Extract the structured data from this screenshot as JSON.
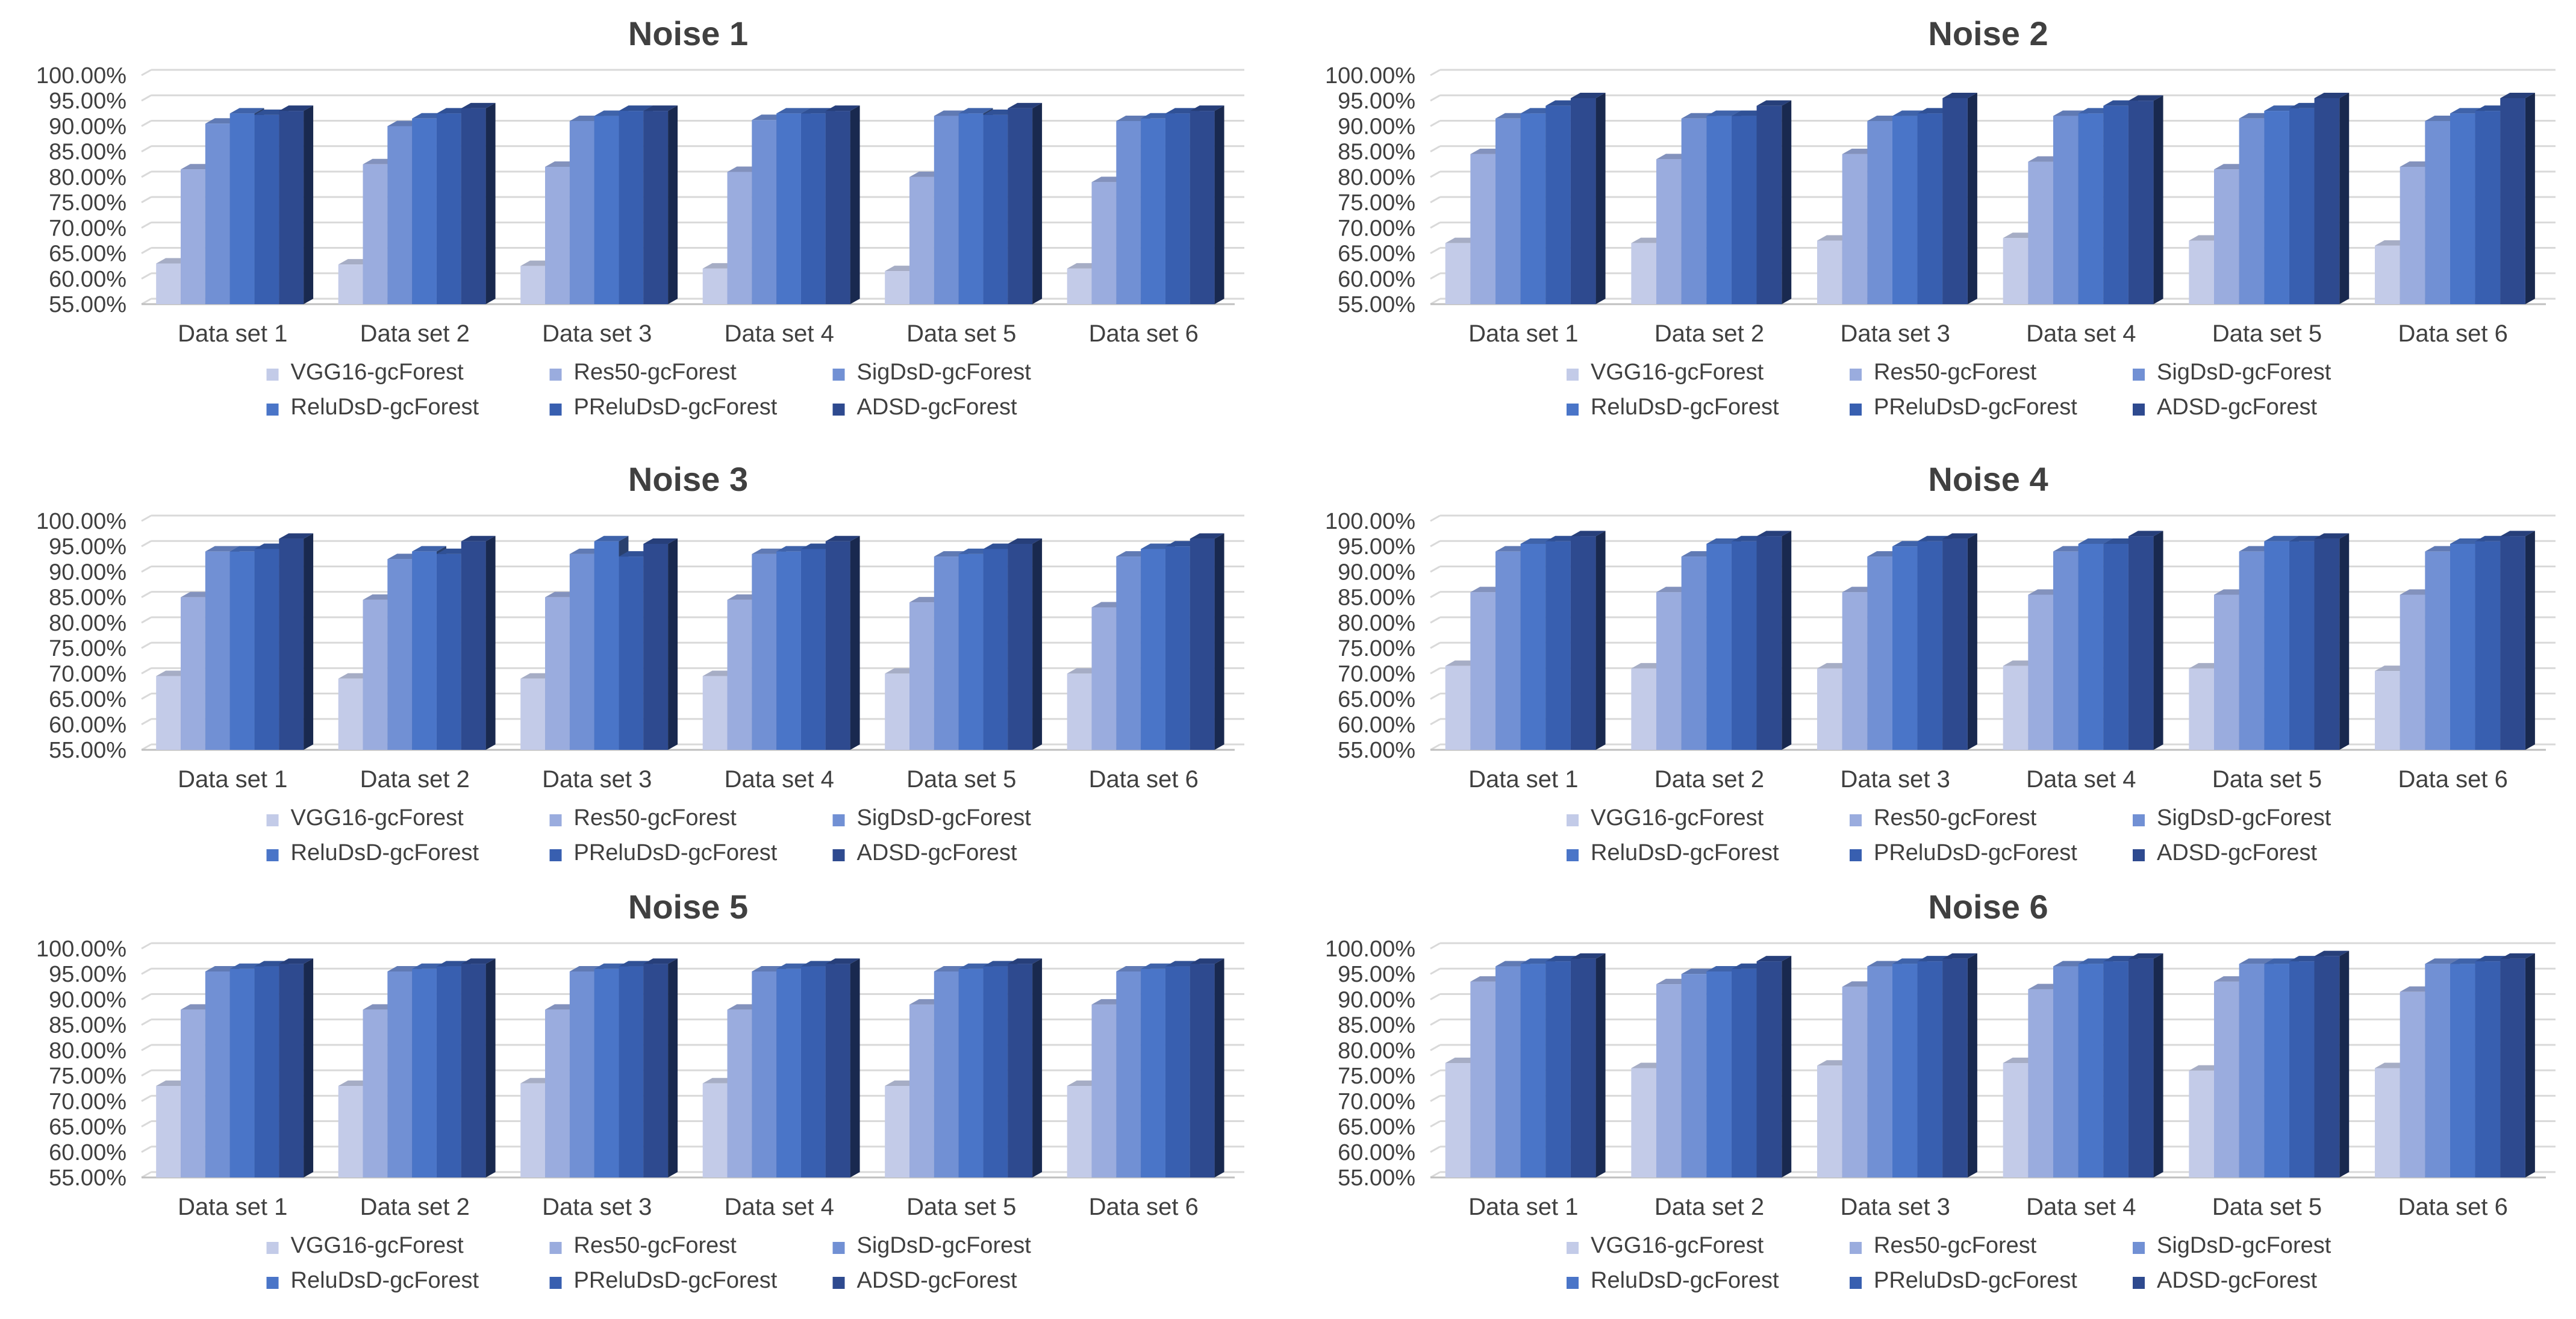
{
  "colors": {
    "VGG16-gcForest": "#c3cbe8",
    "Res50-gcForest": "#9aacde",
    "SigDsD-gcForest": "#7190d4",
    "ReluDsD-gcForest": "#4a75c8",
    "PReluDsD-gcForest": "#385fb0",
    "ADSD-gcForest": "#2e4a8f"
  },
  "chart_data": [
    {
      "type": "bar",
      "title": "Noise 1",
      "categories": [
        "Data set 1",
        "Data set 2",
        "Data set 3",
        "Data set 4",
        "Data set 5",
        "Data set 6"
      ],
      "y_tick_labels": [
        "55.00%",
        "60.00%",
        "65.00%",
        "70.00%",
        "75.00%",
        "80.00%",
        "85.00%",
        "90.00%",
        "95.00%",
        "100.00%"
      ],
      "ylim": [
        55,
        100
      ],
      "series": [
        {
          "name": "VGG16-gcForest",
          "values": [
            63.0,
            62.8,
            62.5,
            62.0,
            61.5,
            62.0
          ]
        },
        {
          "name": "Res50-gcForest",
          "values": [
            81.5,
            82.5,
            82.0,
            81.0,
            80.0,
            79.0
          ]
        },
        {
          "name": "SigDsD-gcForest",
          "values": [
            90.5,
            90.0,
            91.0,
            91.2,
            92.0,
            91.0
          ]
        },
        {
          "name": "ReluDsD-gcForest",
          "values": [
            92.5,
            91.5,
            92.0,
            92.5,
            92.5,
            91.5
          ]
        },
        {
          "name": "PReluDsD-gcForest",
          "values": [
            92.2,
            92.5,
            93.0,
            92.5,
            92.2,
            92.5
          ]
        },
        {
          "name": "ADSD-gcForest",
          "values": [
            93.0,
            93.5,
            93.0,
            93.0,
            93.5,
            93.0
          ]
        }
      ]
    },
    {
      "type": "bar",
      "title": "Noise 2",
      "categories": [
        "Data set 1",
        "Data set 2",
        "Data set 3",
        "Data set 4",
        "Data set 5",
        "Data set 6"
      ],
      "y_tick_labels": [
        "55.00%",
        "60.00%",
        "65.00%",
        "70.00%",
        "75.00%",
        "80.00%",
        "85.00%",
        "90.00%",
        "95.00%",
        "100.00%"
      ],
      "ylim": [
        55,
        100
      ],
      "series": [
        {
          "name": "VGG16-gcForest",
          "values": [
            67.0,
            67.0,
            67.5,
            68.0,
            67.5,
            66.5
          ]
        },
        {
          "name": "Res50-gcForest",
          "values": [
            84.5,
            83.5,
            84.5,
            83.0,
            81.5,
            82.0
          ]
        },
        {
          "name": "SigDsD-gcForest",
          "values": [
            91.5,
            91.5,
            91.0,
            92.0,
            91.5,
            91.0
          ]
        },
        {
          "name": "ReluDsD-gcForest",
          "values": [
            92.5,
            92.0,
            92.0,
            92.5,
            93.0,
            92.5
          ]
        },
        {
          "name": "PReluDsD-gcForest",
          "values": [
            94.0,
            92.0,
            92.5,
            94.0,
            93.5,
            93.0
          ]
        },
        {
          "name": "ADSD-gcForest",
          "values": [
            95.5,
            94.0,
            95.5,
            95.0,
            95.5,
            95.5
          ]
        }
      ]
    },
    {
      "type": "bar",
      "title": "Noise 3",
      "categories": [
        "Data set 1",
        "Data set 2",
        "Data set 3",
        "Data set 4",
        "Data set 5",
        "Data set 6"
      ],
      "y_tick_labels": [
        "55.00%",
        "60.00%",
        "65.00%",
        "70.00%",
        "75.00%",
        "80.00%",
        "85.00%",
        "90.00%",
        "95.00%",
        "100.00%"
      ],
      "ylim": [
        55,
        100
      ],
      "series": [
        {
          "name": "VGG16-gcForest",
          "values": [
            69.5,
            69.0,
            69.0,
            69.5,
            70.0,
            70.0
          ]
        },
        {
          "name": "Res50-gcForest",
          "values": [
            85.0,
            84.5,
            85.0,
            84.5,
            84.0,
            83.0
          ]
        },
        {
          "name": "SigDsD-gcForest",
          "values": [
            94.0,
            92.5,
            93.5,
            93.5,
            93.0,
            93.0
          ]
        },
        {
          "name": "ReluDsD-gcForest",
          "values": [
            94.0,
            94.0,
            96.0,
            94.0,
            93.5,
            94.5
          ]
        },
        {
          "name": "PReluDsD-gcForest",
          "values": [
            94.5,
            93.5,
            93.0,
            94.5,
            94.5,
            95.0
          ]
        },
        {
          "name": "ADSD-gcForest",
          "values": [
            96.5,
            96.0,
            95.5,
            96.0,
            95.5,
            96.5
          ]
        }
      ]
    },
    {
      "type": "bar",
      "title": "Noise 4",
      "categories": [
        "Data set 1",
        "Data set 2",
        "Data set 3",
        "Data set 4",
        "Data set 5",
        "Data set 6"
      ],
      "y_tick_labels": [
        "55.00%",
        "60.00%",
        "65.00%",
        "70.00%",
        "75.00%",
        "80.00%",
        "85.00%",
        "90.00%",
        "95.00%",
        "100.00%"
      ],
      "ylim": [
        55,
        100
      ],
      "series": [
        {
          "name": "VGG16-gcForest",
          "values": [
            71.5,
            71.0,
            71.0,
            71.5,
            71.0,
            70.5
          ]
        },
        {
          "name": "Res50-gcForest",
          "values": [
            86.0,
            86.0,
            86.0,
            85.5,
            85.5,
            85.5
          ]
        },
        {
          "name": "SigDsD-gcForest",
          "values": [
            94.0,
            93.0,
            93.0,
            94.0,
            94.0,
            94.0
          ]
        },
        {
          "name": "ReluDsD-gcForest",
          "values": [
            95.5,
            95.5,
            95.0,
            95.5,
            96.0,
            95.5
          ]
        },
        {
          "name": "PReluDsD-gcForest",
          "values": [
            96.0,
            96.0,
            96.0,
            95.5,
            96.0,
            96.0
          ]
        },
        {
          "name": "ADSD-gcForest",
          "values": [
            97.0,
            97.0,
            96.5,
            97.0,
            96.5,
            97.0
          ]
        }
      ]
    },
    {
      "type": "bar",
      "title": "Noise 5",
      "categories": [
        "Data set 1",
        "Data set 2",
        "Data set 3",
        "Data set 4",
        "Data set 5",
        "Data set 6"
      ],
      "y_tick_labels": [
        "55.00%",
        "60.00%",
        "65.00%",
        "70.00%",
        "75.00%",
        "80.00%",
        "85.00%",
        "90.00%",
        "95.00%",
        "100.00%"
      ],
      "ylim": [
        55,
        100
      ],
      "series": [
        {
          "name": "VGG16-gcForest",
          "values": [
            73.0,
            73.0,
            73.5,
            73.5,
            73.0,
            73.0
          ]
        },
        {
          "name": "Res50-gcForest",
          "values": [
            88.0,
            88.0,
            88.0,
            88.0,
            89.0,
            89.0
          ]
        },
        {
          "name": "SigDsD-gcForest",
          "values": [
            95.5,
            95.5,
            95.5,
            95.5,
            95.5,
            95.5
          ]
        },
        {
          "name": "ReluDsD-gcForest",
          "values": [
            96.0,
            96.0,
            96.0,
            96.0,
            96.0,
            96.0
          ]
        },
        {
          "name": "PReluDsD-gcForest",
          "values": [
            96.5,
            96.5,
            96.5,
            96.5,
            96.5,
            96.5
          ]
        },
        {
          "name": "ADSD-gcForest",
          "values": [
            97.0,
            97.0,
            97.0,
            97.0,
            97.0,
            97.0
          ]
        }
      ]
    },
    {
      "type": "bar",
      "title": "Noise 6",
      "categories": [
        "Data set 1",
        "Data set 2",
        "Data set 3",
        "Data set 4",
        "Data set 5",
        "Data set 6"
      ],
      "y_tick_labels": [
        "55.00%",
        "60.00%",
        "65.00%",
        "70.00%",
        "75.00%",
        "80.00%",
        "85.00%",
        "90.00%",
        "95.00%",
        "100.00%"
      ],
      "ylim": [
        55,
        100
      ],
      "series": [
        {
          "name": "VGG16-gcForest",
          "values": [
            77.5,
            76.5,
            77.0,
            77.5,
            76.0,
            76.5
          ]
        },
        {
          "name": "Res50-gcForest",
          "values": [
            93.5,
            93.0,
            92.5,
            92.0,
            93.5,
            91.5
          ]
        },
        {
          "name": "SigDsD-gcForest",
          "values": [
            96.5,
            95.0,
            96.5,
            96.5,
            97.0,
            97.0
          ]
        },
        {
          "name": "ReluDsD-gcForest",
          "values": [
            97.0,
            95.5,
            97.0,
            97.0,
            97.0,
            97.0
          ]
        },
        {
          "name": "PReluDsD-gcForest",
          "values": [
            97.5,
            96.0,
            97.5,
            97.5,
            97.5,
            97.5
          ]
        },
        {
          "name": "ADSD-gcForest",
          "values": [
            98.0,
            97.5,
            98.0,
            98.0,
            98.5,
            98.0
          ]
        }
      ]
    }
  ]
}
